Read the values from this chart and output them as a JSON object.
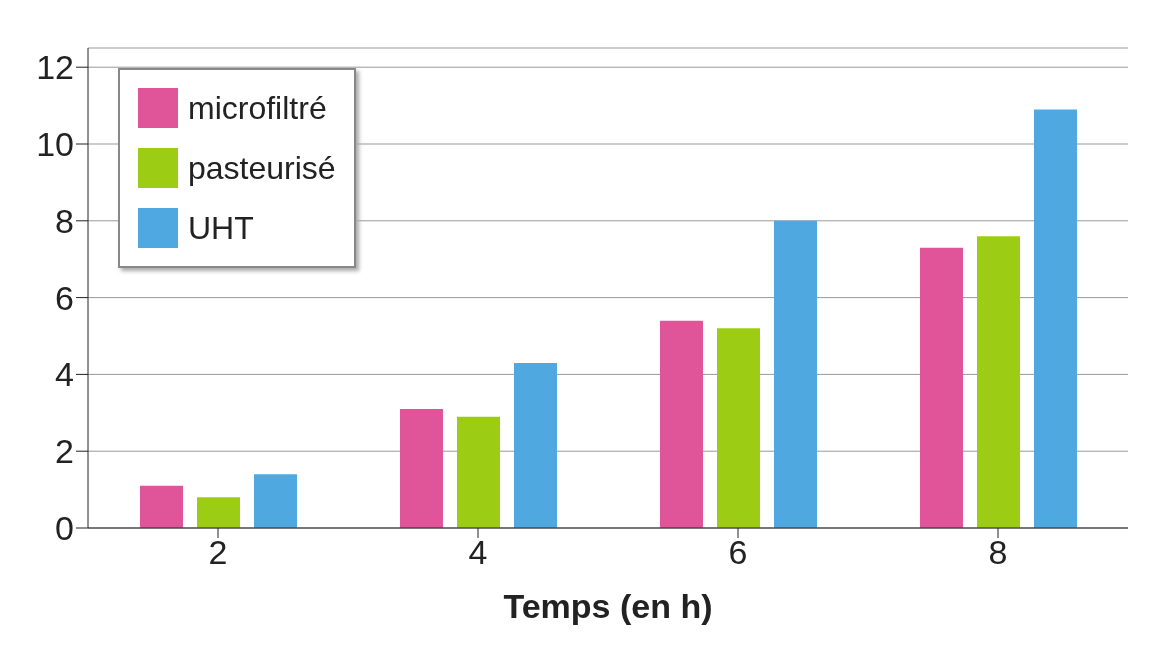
{
  "chart_data": {
    "type": "bar",
    "xlabel": "Temps (en h)",
    "categories": [
      "2",
      "4",
      "6",
      "8"
    ],
    "series": [
      {
        "name": "microfiltré",
        "color": "#e0559a",
        "values": [
          1.1,
          3.1,
          5.4,
          7.3
        ]
      },
      {
        "name": "pasteurisé",
        "color": "#9ccc14",
        "values": [
          0.8,
          2.9,
          5.2,
          7.6
        ]
      },
      {
        "name": "UHT",
        "color": "#4fa8e0",
        "values": [
          1.4,
          4.3,
          8.0,
          10.9
        ]
      }
    ],
    "ylim": [
      0,
      12.5
    ],
    "yticks": [
      0,
      2,
      4,
      6,
      8,
      10,
      12
    ],
    "grid": "y",
    "legend": "top left"
  }
}
